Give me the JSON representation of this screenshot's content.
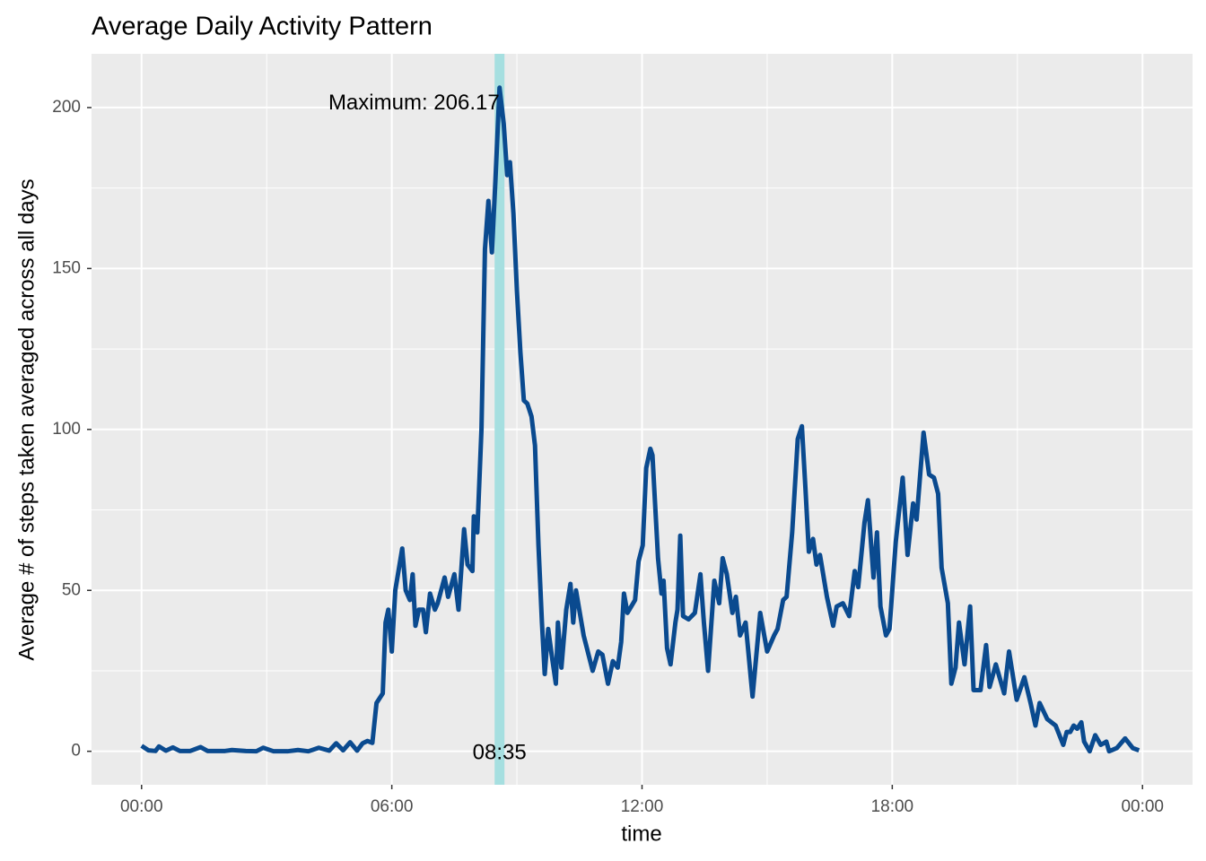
{
  "chart_data": {
    "type": "line",
    "title": "Average Daily Activity Pattern",
    "xlabel": "time",
    "ylabel": "Average # of steps taken averaged across all days",
    "x": [
      0,
      10,
      20,
      25,
      35,
      45,
      55,
      70,
      85,
      95,
      120,
      130,
      150,
      165,
      175,
      190,
      210,
      225,
      240,
      255,
      270,
      280,
      290,
      300,
      310,
      318,
      325,
      332,
      338,
      347,
      351,
      355,
      360,
      365,
      375,
      380,
      386,
      390,
      394,
      399,
      405,
      409,
      415,
      422,
      426,
      436,
      441,
      450,
      456,
      464,
      469,
      476,
      478,
      483,
      489,
      494,
      499,
      504,
      509,
      515,
      521,
      526,
      530,
      535,
      540,
      545,
      550,
      555,
      561,
      566,
      571,
      576,
      580,
      585,
      590,
      596,
      599,
      604,
      611,
      617,
      621,
      625,
      636,
      649,
      657,
      663,
      671,
      678,
      685,
      690,
      694,
      699,
      710,
      715,
      721,
      726,
      732,
      735,
      743,
      748,
      751,
      756,
      761,
      768,
      771,
      775,
      779,
      787,
      796,
      804,
      809,
      815,
      824,
      831,
      836,
      842,
      850,
      855,
      861,
      869,
      879,
      890,
      900,
      910,
      915,
      923,
      928,
      936,
      944,
      950,
      955,
      960,
      966,
      971,
      976,
      986,
      995,
      1000,
      1009,
      1018,
      1026,
      1031,
      1040,
      1045,
      1053,
      1058,
      1063,
      1071,
      1076,
      1085,
      1095,
      1102,
      1110,
      1115,
      1125,
      1133,
      1140,
      1146,
      1151,
      1160,
      1165,
      1171,
      1176,
      1184,
      1192,
      1197,
      1207,
      1215,
      1220,
      1229,
      1241,
      1248,
      1259,
      1270,
      1279,
      1286,
      1292,
      1303,
      1315,
      1326,
      1331,
      1336,
      1341,
      1346,
      1352,
      1356,
      1364,
      1372,
      1380,
      1388,
      1392,
      1403,
      1415,
      1426,
      1435
    ],
    "series": [
      {
        "color": "#0a4a8f",
        "values": [
          1.7,
          0.3,
          0.1,
          1.5,
          0.2,
          1.2,
          0.1,
          0.1,
          1.3,
          0.1,
          0.1,
          0.4,
          0.1,
          0,
          1.1,
          0,
          0,
          0.4,
          0,
          1.1,
          0.2,
          2.5,
          0.3,
          2.8,
          0.2,
          2.5,
          3.2,
          2.6,
          15,
          18,
          40,
          44,
          31,
          50,
          63,
          50,
          47,
          55,
          39,
          44,
          44,
          37,
          49,
          44,
          46,
          54,
          48,
          55,
          44,
          69,
          58,
          56,
          73,
          68,
          100,
          156,
          171,
          155,
          177,
          206.17,
          195,
          179,
          183,
          167,
          143,
          124,
          109,
          108,
          104,
          95,
          64,
          40,
          24,
          38,
          30,
          21,
          40,
          26,
          44,
          52,
          40,
          50,
          36,
          25,
          31,
          30,
          21,
          28,
          26,
          34,
          49,
          43,
          47,
          59,
          64,
          88,
          94,
          92,
          60,
          49,
          53,
          32,
          27,
          40,
          44,
          67,
          42,
          41,
          43,
          55,
          40,
          25,
          53,
          46,
          60,
          55,
          43,
          48,
          36,
          40,
          17,
          43,
          31,
          36,
          38,
          47,
          48,
          68,
          97,
          101,
          82,
          62,
          66,
          58,
          61,
          48,
          39,
          45,
          46,
          42,
          56,
          51,
          71,
          78,
          54,
          68,
          45,
          36,
          38,
          65,
          85,
          61,
          77,
          72,
          99,
          86,
          85,
          80,
          57,
          46,
          21,
          26,
          40,
          27,
          45,
          19,
          19,
          33,
          20,
          27,
          18,
          31,
          16,
          23,
          15,
          8,
          15,
          10,
          8,
          2,
          6,
          6,
          8,
          7,
          9,
          3,
          0,
          5,
          2,
          3,
          0,
          1,
          4,
          1,
          0.3
        ]
      }
    ],
    "xlim": [
      -72,
      1512
    ],
    "ylim": [
      -10.4,
      216.7
    ],
    "xticks": [
      {
        "value": 0,
        "label": "00:00"
      },
      {
        "value": 360,
        "label": "06:00"
      },
      {
        "value": 720,
        "label": "12:00"
      },
      {
        "value": 1080,
        "label": "18:00"
      },
      {
        "value": 1440,
        "label": "00:00"
      }
    ],
    "yticks": [
      0,
      50,
      100,
      150,
      200
    ],
    "xminor": [
      180,
      540,
      900,
      1260
    ],
    "yminor": [
      25,
      75,
      125,
      175
    ],
    "grid": true,
    "annotation": {
      "x": 515,
      "value": 206.17,
      "color": "#a6dfe0",
      "max_label": "Maximum: 206.17",
      "time_label": "08:35"
    }
  }
}
